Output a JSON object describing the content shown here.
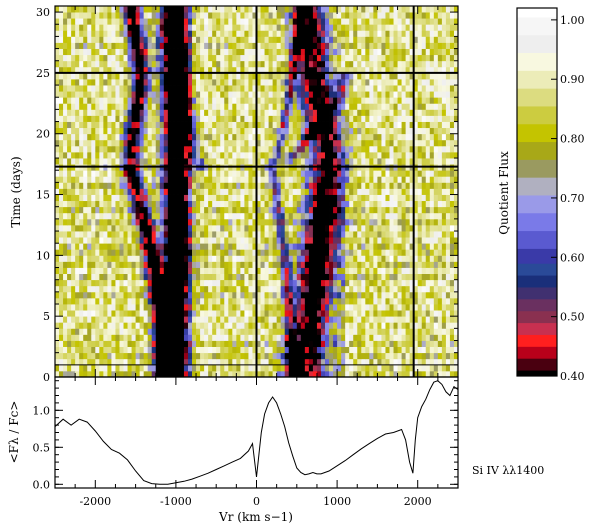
{
  "chart_data": [
    {
      "type": "heatmap",
      "xlim": [
        -2500,
        2500
      ],
      "ylim": [
        0,
        30.5
      ],
      "ylabel": "Time (days)",
      "yticks": [
        0,
        5,
        10,
        15,
        20,
        25,
        30
      ],
      "yminor_step": 1,
      "xticks": [
        -2000,
        -1000,
        0,
        1000,
        2000
      ],
      "xminor_step": 250,
      "vertical_lines": [
        0,
        1950
      ],
      "horizontal_lines": [
        25,
        17.3,
        1
      ],
      "features": [
        {
          "name": "blue-edge",
          "center": [
            [
              0,
              -1150
            ],
            [
              5,
              -1200
            ],
            [
              10,
              -1300
            ],
            [
              15,
              -1470
            ],
            [
              17,
              -1560
            ],
            [
              20,
              -1530
            ],
            [
              25,
              -1420
            ],
            [
              30,
              -1550
            ]
          ],
          "width": 110,
          "depth": 0.55
        },
        {
          "name": "core",
          "center": [
            [
              0,
              -1050
            ],
            [
              10,
              -1000
            ],
            [
              20,
              -1000
            ],
            [
              30,
              -1050
            ]
          ],
          "width": 160,
          "depth": 0.7
        },
        {
          "name": "red-ridge",
          "center": [
            [
              0,
              550
            ],
            [
              5,
              650
            ],
            [
              10,
              750
            ],
            [
              15,
              850
            ],
            [
              17.5,
              900
            ],
            [
              20,
              850
            ],
            [
              25,
              700
            ],
            [
              30,
              650
            ]
          ],
          "width": 220,
          "depth": 0.55
        },
        {
          "name": "left-streak",
          "center": [
            [
              0,
              450
            ],
            [
              10,
              350
            ],
            [
              17,
              200
            ],
            [
              20,
              320
            ],
            [
              25,
              450
            ],
            [
              30,
              550
            ]
          ],
          "width": 60,
          "depth": 0.32
        },
        {
          "name": "mid-blob",
          "center": [
            [
              17.3,
              350
            ],
            [
              19,
              550
            ],
            [
              21,
              800
            ],
            [
              23,
              1050
            ],
            [
              25,
              1100
            ]
          ],
          "width": 80,
          "depth": 0.32
        },
        {
          "name": "late-blob",
          "center": [
            [
              17,
              -700
            ],
            [
              20,
              -800
            ],
            [
              25,
              -900
            ],
            [
              30,
              -1000
            ]
          ],
          "width": 90,
          "depth": 0.2
        }
      ]
    },
    {
      "type": "line",
      "xlim": [
        -2500,
        2500
      ],
      "ylim": [
        -0.05,
        1.45
      ],
      "ylabel": "<Fλ / Fc>",
      "xlabel": "Vr (km s−1)",
      "yticks": [
        0.0,
        0.5,
        1.0
      ],
      "xticks": [
        -2000,
        -1000,
        0,
        1000,
        2000
      ],
      "annotation": "Si IV λλ1400",
      "x": [
        -2500,
        -2400,
        -2300,
        -2200,
        -2100,
        -2000,
        -1900,
        -1800,
        -1700,
        -1600,
        -1500,
        -1400,
        -1300,
        -1200,
        -1100,
        -1000,
        -900,
        -800,
        -700,
        -600,
        -500,
        -400,
        -300,
        -200,
        -100,
        -50,
        0,
        30,
        60,
        100,
        150,
        200,
        250,
        300,
        350,
        400,
        450,
        500,
        550,
        600,
        650,
        700,
        750,
        800,
        900,
        1000,
        1100,
        1200,
        1300,
        1400,
        1500,
        1600,
        1700,
        1800,
        1850,
        1900,
        1940,
        1970,
        2000,
        2050,
        2100,
        2150,
        2200,
        2250,
        2300,
        2350,
        2400,
        2450,
        2500
      ],
      "y": [
        0.78,
        0.88,
        0.8,
        0.88,
        0.84,
        0.72,
        0.58,
        0.47,
        0.42,
        0.33,
        0.18,
        0.05,
        0.01,
        0.0,
        0.0,
        0.02,
        0.04,
        0.07,
        0.11,
        0.15,
        0.2,
        0.25,
        0.3,
        0.35,
        0.45,
        0.55,
        0.1,
        0.4,
        0.7,
        0.95,
        1.1,
        1.18,
        1.1,
        0.95,
        0.78,
        0.56,
        0.38,
        0.22,
        0.16,
        0.13,
        0.14,
        0.16,
        0.14,
        0.14,
        0.18,
        0.25,
        0.32,
        0.4,
        0.48,
        0.55,
        0.62,
        0.68,
        0.7,
        0.74,
        0.6,
        0.3,
        0.15,
        0.6,
        0.9,
        1.05,
        1.15,
        1.28,
        1.38,
        1.4,
        1.35,
        1.25,
        1.2,
        1.32,
        1.28
      ]
    },
    {
      "type": "heatmap",
      "colorbar": true,
      "label": "Quotient Flux",
      "range": [
        0.4,
        1.02
      ],
      "ticks": [
        "1.00",
        "0.90",
        "0.80",
        "0.70",
        "0.60",
        "0.50",
        "0.40"
      ],
      "colors": [
        {
          "v": 0.4,
          "c": "#000000"
        },
        {
          "v": 0.42,
          "c": "#4a0010"
        },
        {
          "v": 0.44,
          "c": "#b8001a"
        },
        {
          "v": 0.46,
          "c": "#ff1f1f"
        },
        {
          "v": 0.48,
          "c": "#c83050"
        },
        {
          "v": 0.5,
          "c": "#8a3050"
        },
        {
          "v": 0.52,
          "c": "#6a3060"
        },
        {
          "v": 0.54,
          "c": "#403070"
        },
        {
          "v": 0.56,
          "c": "#1a2f7a"
        },
        {
          "v": 0.58,
          "c": "#2a4a98"
        },
        {
          "v": 0.6,
          "c": "#3a3aa8"
        },
        {
          "v": 0.63,
          "c": "#5a5ad0"
        },
        {
          "v": 0.66,
          "c": "#7a7ae8"
        },
        {
          "v": 0.69,
          "c": "#9a9ae8"
        },
        {
          "v": 0.72,
          "c": "#b0b0c0"
        },
        {
          "v": 0.75,
          "c": "#9a9a60"
        },
        {
          "v": 0.78,
          "c": "#a8a818"
        },
        {
          "v": 0.81,
          "c": "#c4c400"
        },
        {
          "v": 0.84,
          "c": "#cccc40"
        },
        {
          "v": 0.87,
          "c": "#dcdc80"
        },
        {
          "v": 0.9,
          "c": "#ececb8"
        },
        {
          "v": 0.93,
          "c": "#f8f8e0"
        },
        {
          "v": 0.96,
          "c": "#eeeeee"
        },
        {
          "v": 0.99,
          "c": "#f6f6f6"
        },
        {
          "v": 1.02,
          "c": "#ffffff"
        }
      ]
    }
  ]
}
